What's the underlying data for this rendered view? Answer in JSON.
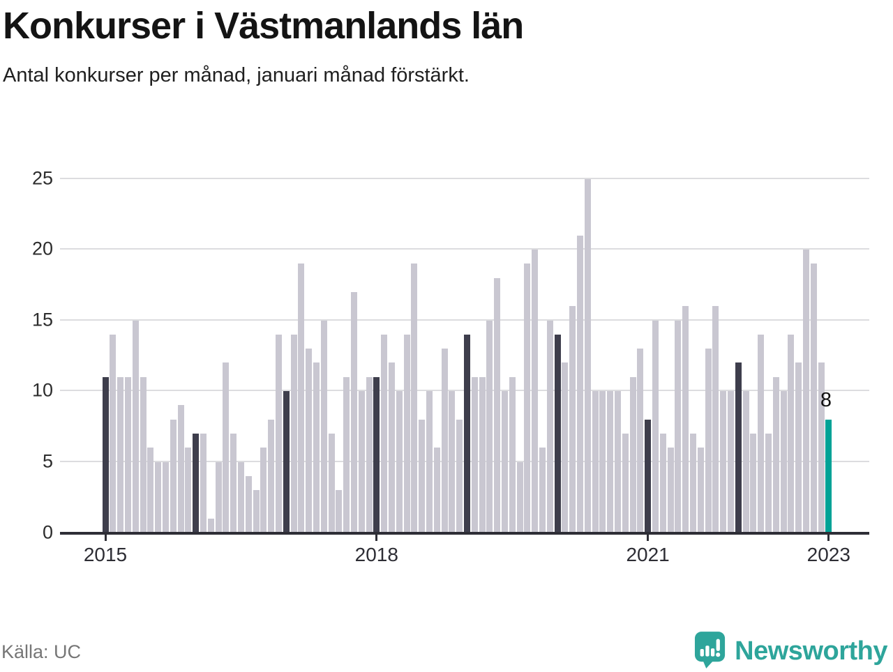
{
  "header": {
    "title": "Konkurser i Västmanlands län",
    "subtitle": "Antal konkurser per månad, januari månad förstärkt."
  },
  "footer": {
    "source": "Källa: UC",
    "brand": "Newsworthy"
  },
  "colors": {
    "bar_default": "#C9C7D1",
    "bar_january": "#3E3E4C",
    "bar_latest": "#00A296",
    "gridline": "#DCDCDF",
    "axis": "#2E2E36",
    "brand_teal": "#2EA59B"
  },
  "chart_data": {
    "type": "bar",
    "title": "Konkurser i Västmanlands län",
    "subtitle": "Antal konkurser per månad, januari månad förstärkt.",
    "x_start": "2015-01",
    "x_end": "2023-01",
    "ylim": [
      0,
      25
    ],
    "yticks": [
      0,
      5,
      10,
      15,
      20,
      25
    ],
    "xtick_labels": [
      "2015",
      "2018",
      "2021",
      "2023"
    ],
    "xtick_year_index": [
      0,
      3,
      6,
      8
    ],
    "grid": "horizontal",
    "legend": "none",
    "highlight_rule": "january bars dark, latest bar teal with value label",
    "latest": {
      "month": "2023-01",
      "value": 8,
      "label": "8"
    },
    "values_by_year": {
      "2015": [
        11,
        14,
        11,
        11,
        15,
        11,
        6,
        5,
        5,
        8,
        9,
        6
      ],
      "2016": [
        7,
        7,
        1,
        5,
        12,
        7,
        5,
        4,
        3,
        6,
        8,
        14
      ],
      "2017": [
        10,
        14,
        19,
        13,
        12,
        15,
        7,
        3,
        11,
        17,
        10,
        11
      ],
      "2018": [
        11,
        14,
        12,
        10,
        14,
        19,
        8,
        10,
        6,
        13,
        10,
        8
      ],
      "2019": [
        14,
        11,
        11,
        15,
        18,
        10,
        11,
        5,
        19,
        20,
        6,
        15
      ],
      "2020": [
        14,
        12,
        16,
        21,
        25,
        10,
        10,
        10,
        10,
        7,
        11,
        13
      ],
      "2021": [
        8,
        15,
        7,
        6,
        15,
        16,
        7,
        6,
        13,
        16,
        10,
        10
      ],
      "2022": [
        12,
        10,
        7,
        14,
        7,
        11,
        10,
        14,
        12,
        20,
        19,
        12
      ],
      "2023": [
        8
      ]
    }
  }
}
